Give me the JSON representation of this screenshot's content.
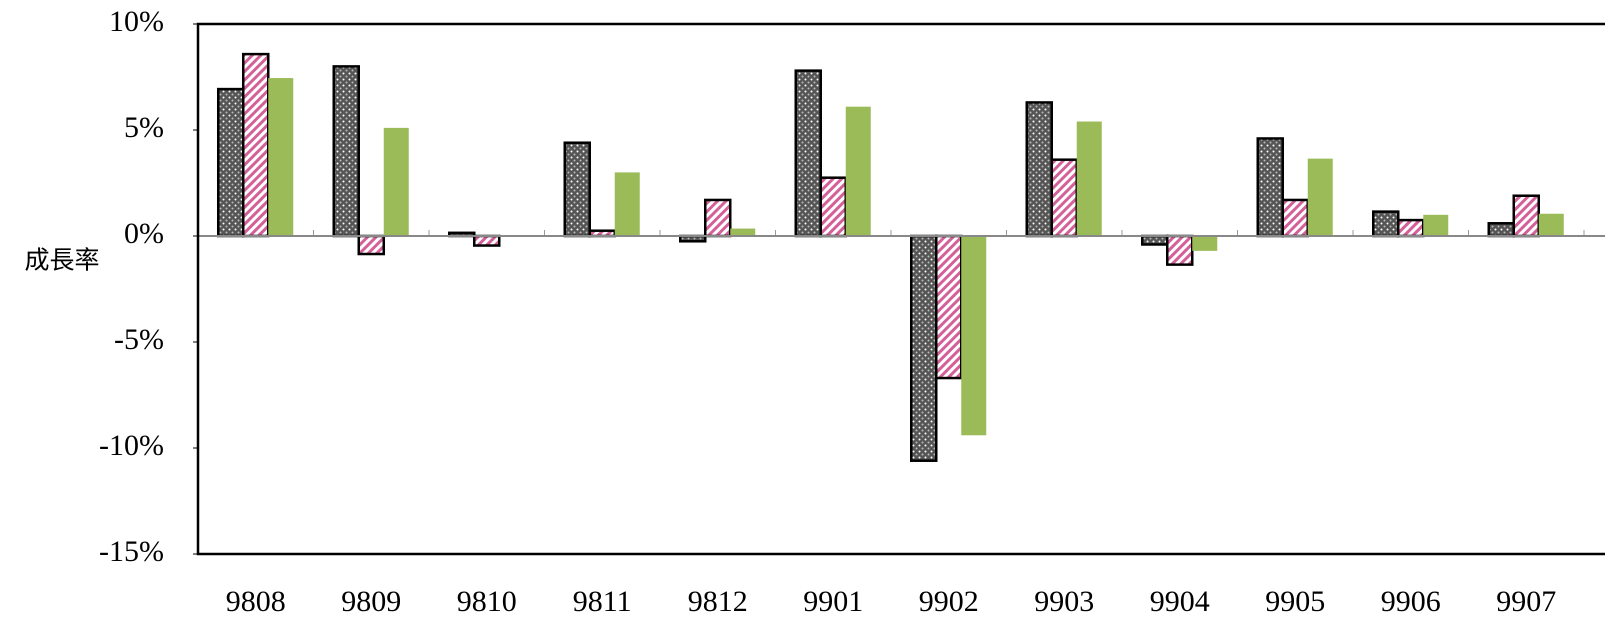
{
  "chart_data": {
    "type": "bar",
    "ylabel": "成長率",
    "categories": [
      "9808",
      "9809",
      "9810",
      "9811",
      "9812",
      "9901",
      "9902",
      "9903",
      "9904",
      "9905",
      "9906",
      "9907"
    ],
    "series": [
      {
        "color": "#555555",
        "values": [
          6.93,
          8.0,
          0.15,
          4.4,
          -0.25,
          7.8,
          -10.6,
          6.3,
          -0.4,
          4.6,
          1.15,
          0.6
        ]
      },
      {
        "color": "#d4609a",
        "values": [
          8.58,
          -0.85,
          -0.45,
          0.25,
          1.7,
          2.75,
          -6.7,
          3.6,
          -1.35,
          1.7,
          0.75,
          1.9
        ]
      },
      {
        "color": "#9bbb59",
        "values": [
          7.45,
          5.1,
          0,
          3.0,
          0.35,
          6.1,
          -9.4,
          5.4,
          -0.7,
          3.65,
          1.0,
          1.05
        ]
      }
    ],
    "ylim": [
      -15,
      10
    ],
    "yticks": [
      {
        "value": -15,
        "label": "-15%"
      },
      {
        "value": -10,
        "label": "-10%"
      },
      {
        "value": -5,
        "label": "-5%"
      },
      {
        "value": 0,
        "label": "0%"
      },
      {
        "value": 5,
        "label": "5%"
      },
      {
        "value": 10,
        "label": "10%"
      }
    ]
  }
}
